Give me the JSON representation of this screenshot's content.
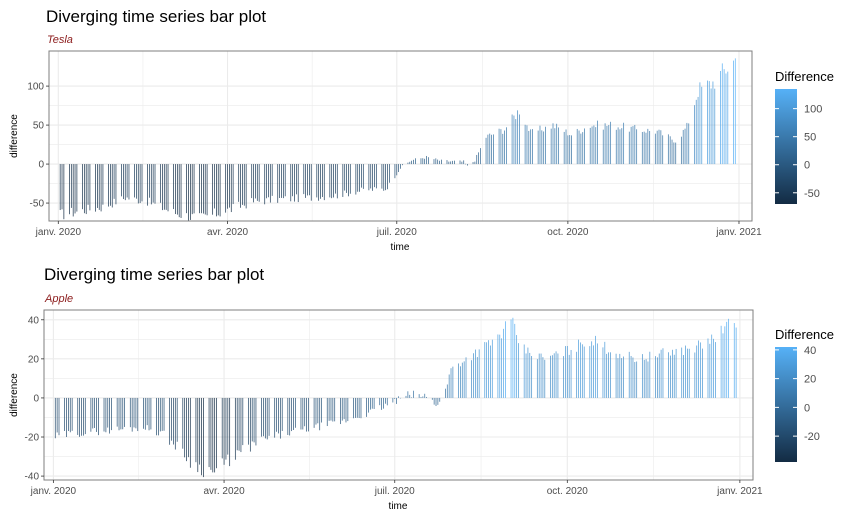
{
  "colors": {
    "low": "#132B43",
    "high": "#56B1F7",
    "subtitle": "#8B1A1A",
    "grid": "#ebebeb",
    "panel_border": "#7f7f7f"
  },
  "chart_data": [
    {
      "type": "bar",
      "title": "Diverging time series bar plot",
      "subtitle": "Tesla",
      "xlabel": "time",
      "ylabel": "difference",
      "legend_title": "Difference",
      "legend_position": "right",
      "grid": true,
      "x_ticks": [
        "janv. 2020",
        "avr. 2020",
        "juil. 2020",
        "oct. 2020",
        "janv. 2021"
      ],
      "x_tick_days": [
        0,
        91,
        182,
        274,
        366
      ],
      "xlim_days": [
        -5,
        373
      ],
      "y_ticks": [
        -50,
        0,
        50,
        100
      ],
      "ylim": [
        -73,
        145
      ],
      "legend_ticks": [
        100,
        50,
        0,
        -50
      ],
      "color_range": [
        -70,
        135
      ],
      "keypoints": [
        [
          1,
          -65
        ],
        [
          12,
          -60
        ],
        [
          24,
          -55
        ],
        [
          36,
          -43
        ],
        [
          48,
          -48
        ],
        [
          62,
          -62
        ],
        [
          76,
          -70
        ],
        [
          90,
          -60
        ],
        [
          105,
          -48
        ],
        [
          120,
          -45
        ],
        [
          135,
          -43
        ],
        [
          150,
          -40
        ],
        [
          165,
          -33
        ],
        [
          176,
          -32
        ],
        [
          180,
          -20
        ],
        [
          184,
          -5
        ],
        [
          190,
          5
        ],
        [
          198,
          9
        ],
        [
          206,
          4
        ],
        [
          218,
          3
        ],
        [
          220,
          -3
        ],
        [
          224,
          5
        ],
        [
          230,
          35
        ],
        [
          240,
          45
        ],
        [
          248,
          70
        ],
        [
          254,
          40
        ],
        [
          266,
          50
        ],
        [
          276,
          38
        ],
        [
          286,
          50
        ],
        [
          298,
          50
        ],
        [
          310,
          45
        ],
        [
          322,
          42
        ],
        [
          332,
          30
        ],
        [
          338,
          48
        ],
        [
          344,
          95
        ],
        [
          352,
          105
        ],
        [
          360,
          125
        ],
        [
          364,
          135
        ]
      ]
    },
    {
      "type": "bar",
      "title": "Diverging time series bar plot",
      "subtitle": "Apple",
      "xlabel": "time",
      "ylabel": "difference",
      "legend_title": "Difference",
      "legend_position": "right",
      "grid": true,
      "x_ticks": [
        "janv. 2020",
        "avr. 2020",
        "juil. 2020",
        "oct. 2020",
        "janv. 2021"
      ],
      "x_tick_days": [
        0,
        91,
        182,
        274,
        366
      ],
      "xlim_days": [
        -5,
        373
      ],
      "y_ticks": [
        -40,
        -20,
        0,
        20,
        40
      ],
      "ylim": [
        -42,
        45
      ],
      "legend_ticks": [
        40,
        20,
        0,
        -20
      ],
      "color_range": [
        -38,
        42
      ],
      "keypoints": [
        [
          1,
          -20
        ],
        [
          12,
          -18
        ],
        [
          24,
          -17
        ],
        [
          36,
          -16
        ],
        [
          48,
          -15
        ],
        [
          58,
          -18
        ],
        [
          66,
          -25
        ],
        [
          76,
          -35
        ],
        [
          86,
          -38
        ],
        [
          96,
          -30
        ],
        [
          110,
          -22
        ],
        [
          125,
          -18
        ],
        [
          140,
          -15
        ],
        [
          155,
          -12
        ],
        [
          170,
          -7
        ],
        [
          182,
          -2
        ],
        [
          190,
          2
        ],
        [
          198,
          1
        ],
        [
          204,
          -3
        ],
        [
          208,
          0
        ],
        [
          212,
          15
        ],
        [
          220,
          20
        ],
        [
          236,
          30
        ],
        [
          244,
          39
        ],
        [
          250,
          25
        ],
        [
          262,
          20
        ],
        [
          276,
          25
        ],
        [
          286,
          30
        ],
        [
          300,
          23
        ],
        [
          312,
          20
        ],
        [
          326,
          23
        ],
        [
          338,
          25
        ],
        [
          348,
          28
        ],
        [
          358,
          35
        ],
        [
          364,
          40
        ]
      ]
    }
  ]
}
